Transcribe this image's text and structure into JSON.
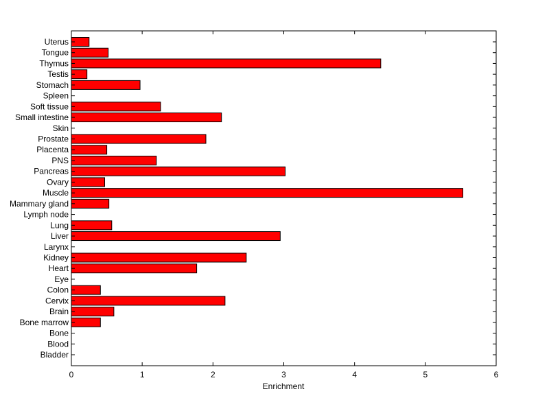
{
  "chart_data": {
    "type": "bar",
    "orientation": "horizontal",
    "title": "",
    "xlabel": "Enrichment",
    "ylabel": "",
    "xlim": [
      0,
      6
    ],
    "xticks": [
      0,
      1,
      2,
      3,
      4,
      5,
      6
    ],
    "grid": false,
    "bar_color": "#ff0000",
    "categories": [
      "Bladder",
      "Blood",
      "Bone",
      "Bone marrow",
      "Brain",
      "Cervix",
      "Colon",
      "Eye",
      "Heart",
      "Kidney",
      "Larynx",
      "Liver",
      "Lung",
      "Lymph node",
      "Mammary gland",
      "Muscle",
      "Ovary",
      "Pancreas",
      "PNS",
      "Placenta",
      "Prostate",
      "Skin",
      "Small intestine",
      "Soft tissue",
      "Spleen",
      "Stomach",
      "Testis",
      "Thymus",
      "Tongue",
      "Uterus"
    ],
    "values": [
      0,
      0,
      0,
      0.41,
      0.6,
      2.17,
      0.41,
      0,
      1.77,
      2.47,
      0,
      2.95,
      0.57,
      0,
      0.53,
      5.53,
      0.47,
      3.02,
      1.2,
      0.5,
      1.9,
      0,
      2.12,
      1.26,
      0,
      0.97,
      0.22,
      4.37,
      0.52,
      0.25
    ]
  }
}
